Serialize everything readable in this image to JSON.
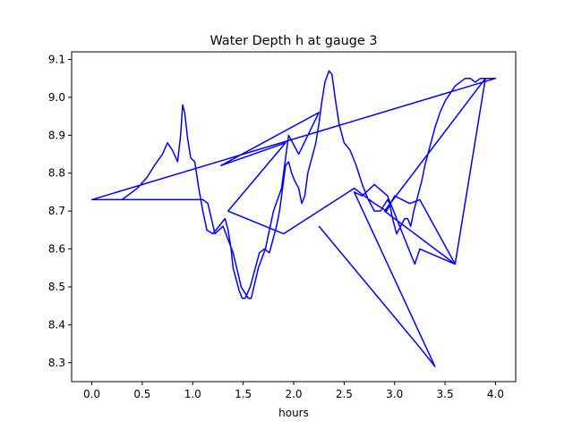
{
  "chart_data": {
    "type": "line",
    "title": "Water Depth h at gauge 3",
    "xlabel": "hours",
    "ylabel": "",
    "xlim": [
      -0.2,
      4.2
    ],
    "ylim": [
      8.25,
      9.12
    ],
    "xticks": [
      0.0,
      0.5,
      1.0,
      1.5,
      2.0,
      2.5,
      3.0,
      3.5,
      4.0
    ],
    "xtick_labels": [
      "0.0",
      "0.5",
      "1.0",
      "1.5",
      "2.0",
      "2.5",
      "3.0",
      "3.5",
      "4.0"
    ],
    "yticks": [
      8.3,
      8.4,
      8.5,
      8.6,
      8.7,
      8.8,
      8.9,
      9.0,
      9.1
    ],
    "ytick_labels": [
      "8.3",
      "8.4",
      "8.5",
      "8.6",
      "8.7",
      "8.8",
      "8.9",
      "9.0",
      "9.1"
    ],
    "grid": false,
    "line_color": "#0000ff",
    "series": [
      {
        "name": "",
        "x": [
          0.0,
          0.35,
          0.3,
          0.45,
          0.55,
          0.62,
          0.7,
          0.75,
          0.8,
          0.85,
          0.88,
          0.9,
          0.92,
          0.95,
          0.98,
          1.02,
          1.06,
          1.1,
          1.14,
          1.2,
          1.26,
          1.32,
          1.35,
          1.38,
          1.4,
          1.43,
          1.46,
          1.49,
          1.52,
          1.57,
          1.62,
          1.66,
          1.71,
          1.76,
          1.8,
          1.83,
          1.86,
          1.89,
          1.92,
          1.95,
          1.98,
          2.01,
          2.05,
          2.08,
          2.11,
          2.14,
          2.18,
          2.22,
          2.25,
          2.28,
          2.31,
          2.35,
          2.38,
          2.41,
          2.45,
          2.5,
          2.56,
          2.62,
          2.68,
          2.74,
          2.8,
          2.86,
          2.93,
          2.95,
          2.98,
          3.02,
          3.06,
          3.1,
          3.13,
          3.16,
          3.19,
          3.22,
          3.24,
          3.27,
          3.3,
          3.35,
          3.4,
          3.45,
          3.5,
          3.55,
          3.6,
          3.65,
          3.7,
          3.75,
          3.8,
          3.85,
          3.9,
          4.0,
          0.0,
          0.95,
          0.55,
          0.65,
          0.7,
          0.8,
          0.9,
          1.0,
          1.1,
          1.15,
          1.22,
          1.3,
          1.4,
          1.48,
          1.55,
          1.58,
          1.65,
          1.72,
          1.8,
          1.88,
          1.95,
          2.05,
          2.25,
          1.28,
          1.92,
          1.35,
          1.9,
          2.6,
          2.8,
          2.92,
          3.0,
          3.15,
          3.25,
          3.6,
          2.9,
          3.9,
          3.6,
          3.25,
          3.2,
          2.93,
          2.8,
          2.68,
          2.6,
          3.4,
          3.25,
          2.25
        ],
        "y": [
          8.73,
          8.73,
          8.73,
          8.76,
          8.79,
          8.82,
          8.85,
          8.88,
          8.86,
          8.83,
          8.9,
          8.98,
          8.96,
          8.89,
          8.84,
          8.83,
          8.76,
          8.7,
          8.65,
          8.64,
          8.66,
          8.68,
          8.65,
          8.6,
          8.55,
          8.52,
          8.49,
          8.47,
          8.47,
          8.5,
          8.55,
          8.59,
          8.6,
          8.59,
          8.63,
          8.66,
          8.7,
          8.76,
          8.82,
          8.83,
          8.8,
          8.78,
          8.76,
          8.72,
          8.74,
          8.8,
          8.84,
          8.88,
          8.93,
          8.99,
          9.04,
          9.07,
          9.06,
          9.0,
          8.93,
          8.88,
          8.86,
          8.82,
          8.77,
          8.73,
          8.7,
          8.7,
          8.73,
          8.72,
          8.68,
          8.64,
          8.66,
          8.68,
          8.68,
          8.66,
          8.7,
          8.73,
          8.75,
          8.78,
          8.82,
          8.87,
          8.92,
          8.96,
          8.99,
          9.01,
          9.03,
          9.04,
          9.05,
          9.05,
          9.04,
          9.05,
          9.05,
          9.05,
          8.73,
          8.73,
          8.73,
          8.73,
          8.73,
          8.73,
          8.73,
          8.73,
          8.73,
          8.72,
          8.64,
          8.66,
          8.59,
          8.5,
          8.47,
          8.47,
          8.55,
          8.6,
          8.7,
          8.76,
          8.9,
          8.85,
          8.96,
          8.82,
          8.88,
          8.7,
          8.64,
          8.76,
          8.72,
          8.7,
          8.74,
          8.72,
          8.73,
          8.56,
          8.7,
          9.05,
          8.56,
          8.6,
          8.56,
          8.74,
          8.77,
          8.74,
          8.75,
          8.29,
          8.34,
          8.66
        ]
      }
    ]
  }
}
